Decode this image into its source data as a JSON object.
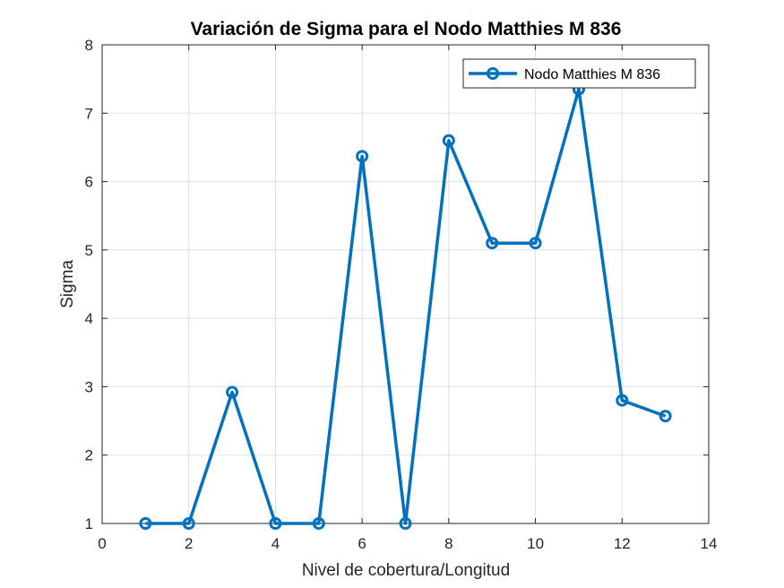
{
  "chart_data": {
    "type": "line",
    "title": "Variación de Sigma para el Nodo Matthies M 836",
    "xlabel": "Nivel de cobertura/Longitud",
    "ylabel": "Sigma",
    "xlim": [
      0,
      14
    ],
    "ylim": [
      1,
      8
    ],
    "xticks": [
      0,
      2,
      4,
      6,
      8,
      10,
      12,
      14
    ],
    "yticks": [
      1,
      2,
      3,
      4,
      5,
      6,
      7,
      8
    ],
    "grid": true,
    "legend_position": "top-right",
    "series": [
      {
        "name": "Nodo Matthies M 836",
        "color": "#0072BD",
        "marker": "circle",
        "x": [
          1,
          2,
          3,
          4,
          5,
          6,
          7,
          8,
          9,
          10,
          11,
          12,
          13
        ],
        "y": [
          1.0,
          1.0,
          2.92,
          1.0,
          1.0,
          6.37,
          1.0,
          6.6,
          5.1,
          5.1,
          7.35,
          2.8,
          2.57
        ]
      }
    ]
  }
}
